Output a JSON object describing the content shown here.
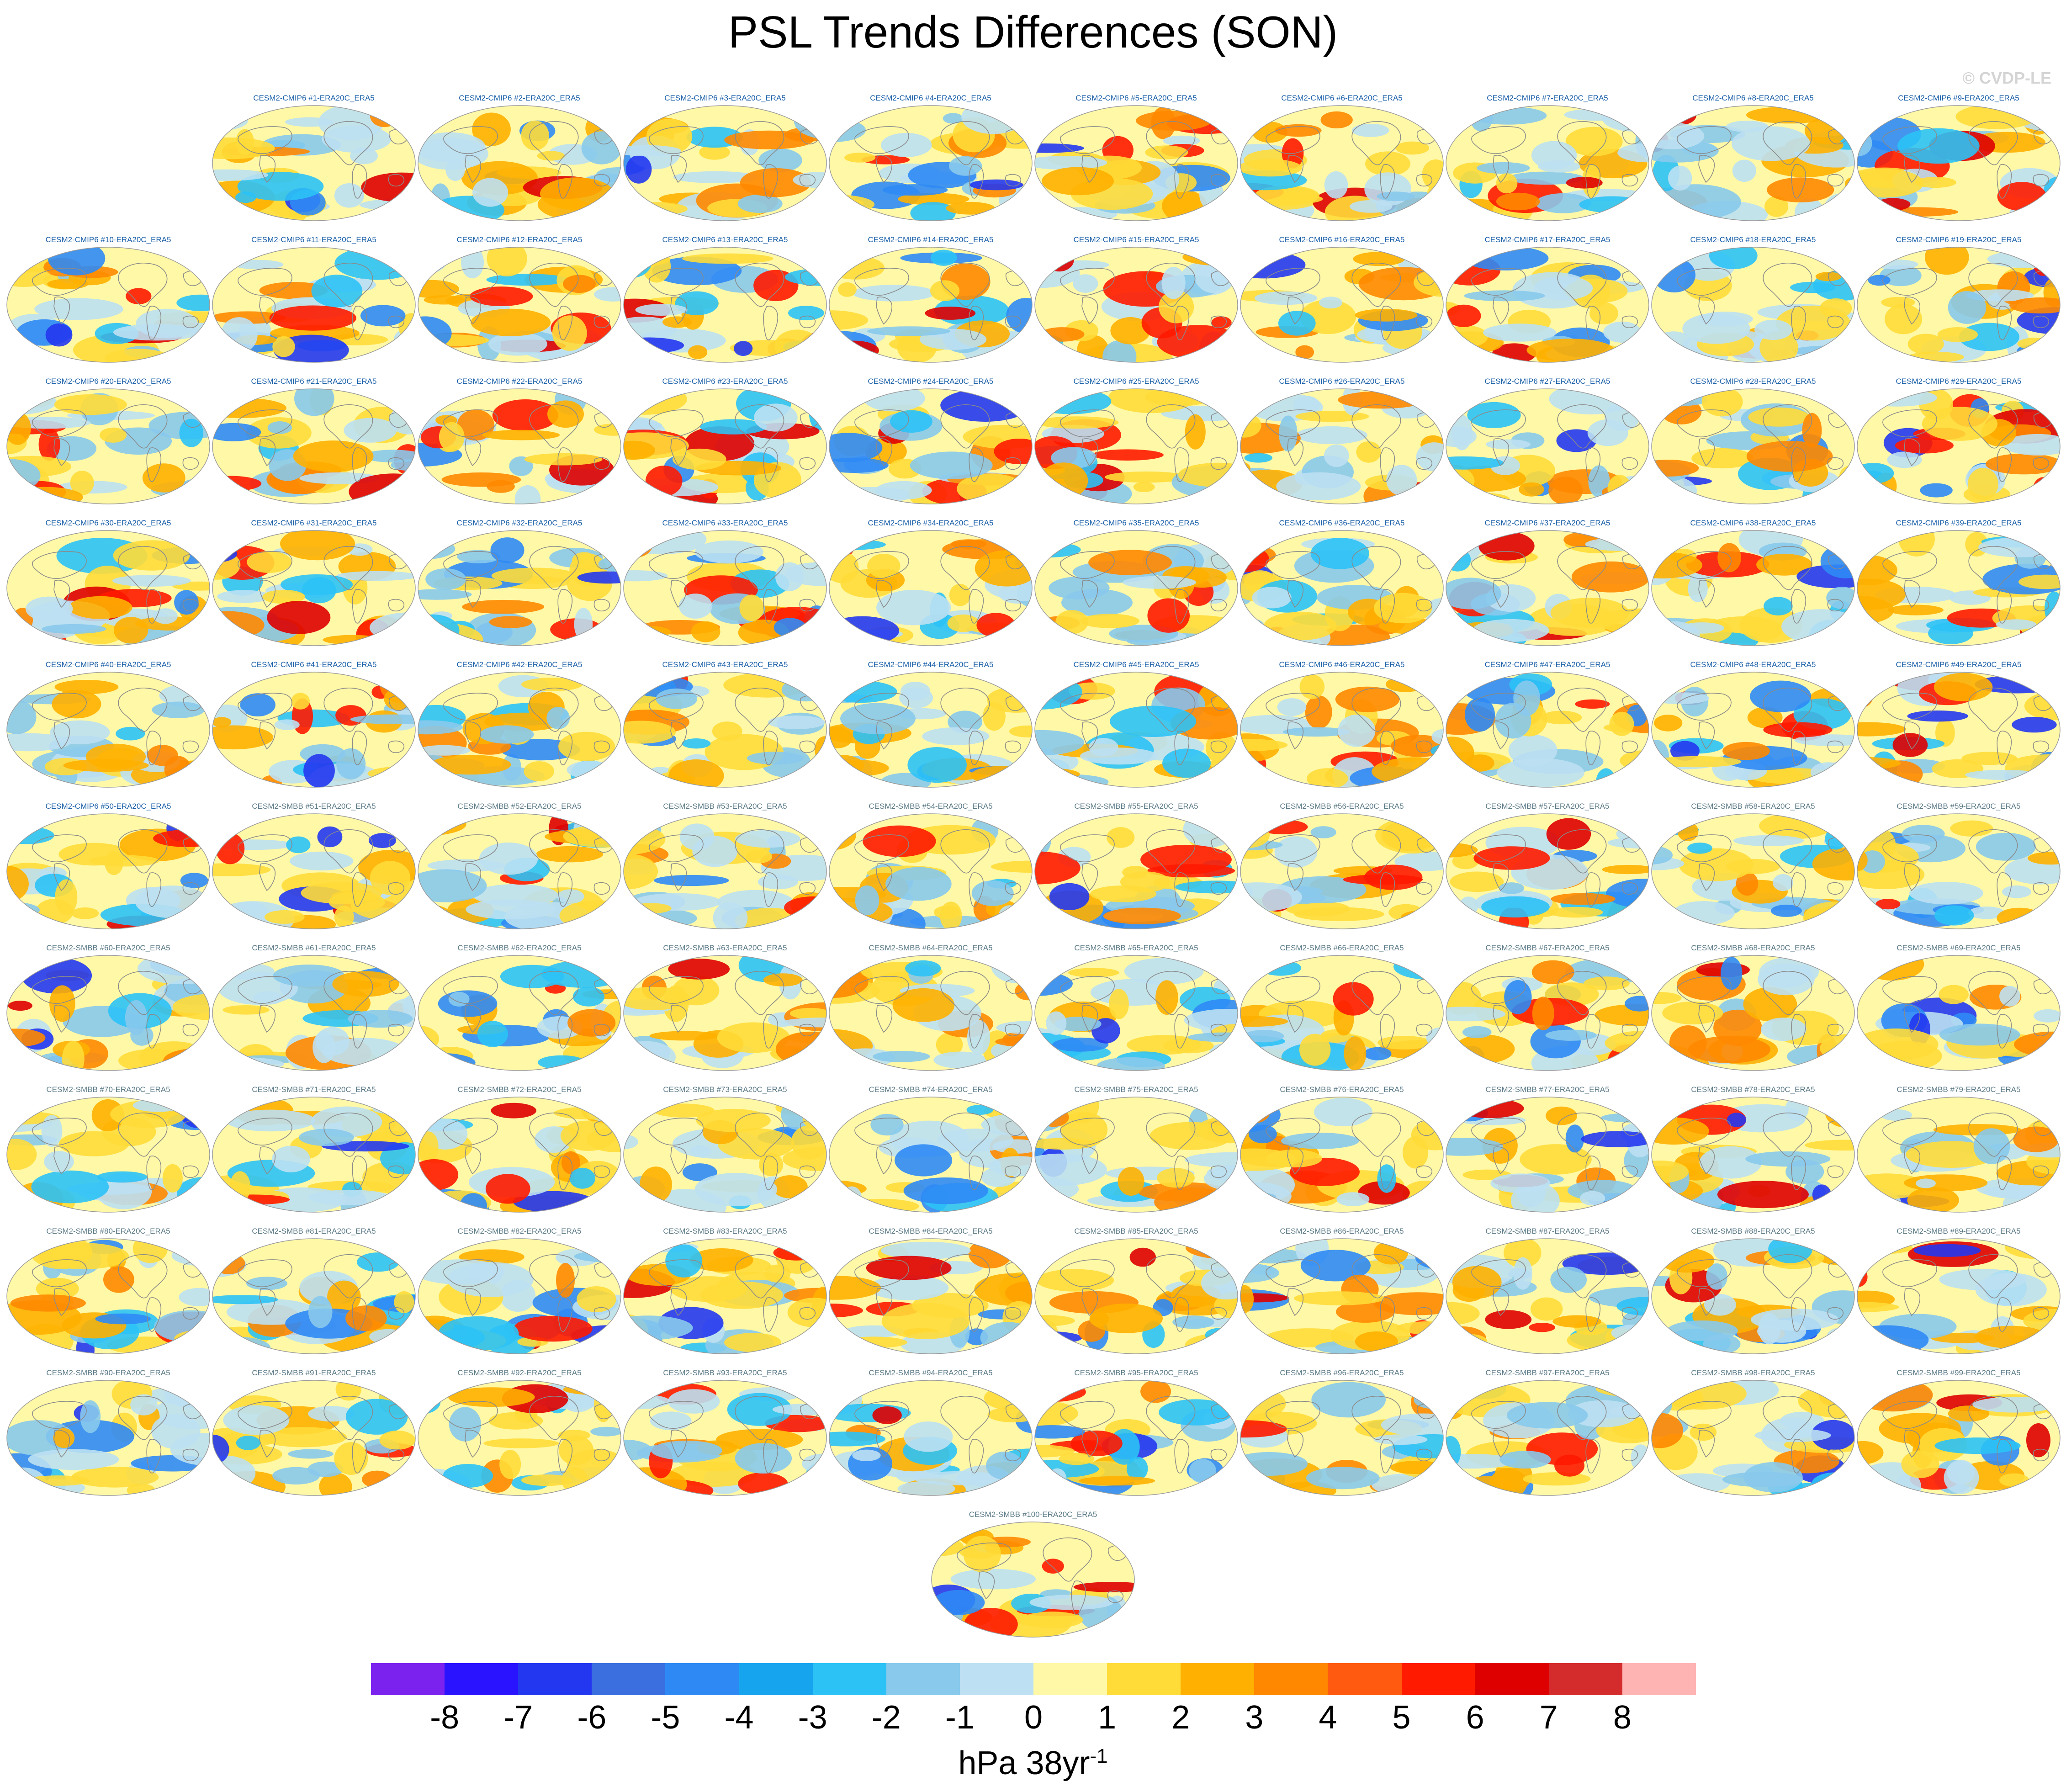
{
  "title": "PSL Trends Differences (SON)",
  "credit": "© CVDP-LE",
  "units": {
    "base": "hPa 38yr",
    "exponent": "-1"
  },
  "colorbar": {
    "labels": [
      "-8",
      "-7",
      "-6",
      "-5",
      "-4",
      "-3",
      "-2",
      "-1",
      "0",
      "1",
      "2",
      "3",
      "4",
      "5",
      "6",
      "7",
      "8"
    ],
    "colors": [
      "#7b22ee",
      "#2a13ff",
      "#2437f0",
      "#3b6fe0",
      "#2f89f5",
      "#17a4ef",
      "#2cc2f6",
      "#88c9ec",
      "#bde0f2",
      "#fff8a6",
      "#ffdc38",
      "#ffb000",
      "#ff8800",
      "#ff5a10",
      "#ff1a00",
      "#de0000",
      "#d42c2c",
      "#ffb4b4"
    ],
    "land_outline": "#8a8a8a"
  },
  "panels": [
    "CESM2-CMIP6 #1-ERA20C_ERA5",
    "CESM2-CMIP6 #2-ERA20C_ERA5",
    "CESM2-CMIP6 #3-ERA20C_ERA5",
    "CESM2-CMIP6 #4-ERA20C_ERA5",
    "CESM2-CMIP6 #5-ERA20C_ERA5",
    "CESM2-CMIP6 #6-ERA20C_ERA5",
    "CESM2-CMIP6 #7-ERA20C_ERA5",
    "CESM2-CMIP6 #8-ERA20C_ERA5",
    "CESM2-CMIP6 #9-ERA20C_ERA5",
    "CESM2-CMIP6 #10-ERA20C_ERA5",
    "CESM2-CMIP6 #11-ERA20C_ERA5",
    "CESM2-CMIP6 #12-ERA20C_ERA5",
    "CESM2-CMIP6 #13-ERA20C_ERA5",
    "CESM2-CMIP6 #14-ERA20C_ERA5",
    "CESM2-CMIP6 #15-ERA20C_ERA5",
    "CESM2-CMIP6 #16-ERA20C_ERA5",
    "CESM2-CMIP6 #17-ERA20C_ERA5",
    "CESM2-CMIP6 #18-ERA20C_ERA5",
    "CESM2-CMIP6 #19-ERA20C_ERA5",
    "CESM2-CMIP6 #20-ERA20C_ERA5",
    "CESM2-CMIP6 #21-ERA20C_ERA5",
    "CESM2-CMIP6 #22-ERA20C_ERA5",
    "CESM2-CMIP6 #23-ERA20C_ERA5",
    "CESM2-CMIP6 #24-ERA20C_ERA5",
    "CESM2-CMIP6 #25-ERA20C_ERA5",
    "CESM2-CMIP6 #26-ERA20C_ERA5",
    "CESM2-CMIP6 #27-ERA20C_ERA5",
    "CESM2-CMIP6 #28-ERA20C_ERA5",
    "CESM2-CMIP6 #29-ERA20C_ERA5",
    "CESM2-CMIP6 #30-ERA20C_ERA5",
    "CESM2-CMIP6 #31-ERA20C_ERA5",
    "CESM2-CMIP6 #32-ERA20C_ERA5",
    "CESM2-CMIP6 #33-ERA20C_ERA5",
    "CESM2-CMIP6 #34-ERA20C_ERA5",
    "CESM2-CMIP6 #35-ERA20C_ERA5",
    "CESM2-CMIP6 #36-ERA20C_ERA5",
    "CESM2-CMIP6 #37-ERA20C_ERA5",
    "CESM2-CMIP6 #38-ERA20C_ERA5",
    "CESM2-CMIP6 #39-ERA20C_ERA5",
    "CESM2-CMIP6 #40-ERA20C_ERA5",
    "CESM2-CMIP6 #41-ERA20C_ERA5",
    "CESM2-CMIP6 #42-ERA20C_ERA5",
    "CESM2-CMIP6 #43-ERA20C_ERA5",
    "CESM2-CMIP6 #44-ERA20C_ERA5",
    "CESM2-CMIP6 #45-ERA20C_ERA5",
    "CESM2-CMIP6 #46-ERA20C_ERA5",
    "CESM2-CMIP6 #47-ERA20C_ERA5",
    "CESM2-CMIP6 #48-ERA20C_ERA5",
    "CESM2-CMIP6 #49-ERA20C_ERA5",
    "CESM2-CMIP6 #50-ERA20C_ERA5",
    "CESM2-SMBB #51-ERA20C_ERA5",
    "CESM2-SMBB #52-ERA20C_ERA5",
    "CESM2-SMBB #53-ERA20C_ERA5",
    "CESM2-SMBB #54-ERA20C_ERA5",
    "CESM2-SMBB #55-ERA20C_ERA5",
    "CESM2-SMBB #56-ERA20C_ERA5",
    "CESM2-SMBB #57-ERA20C_ERA5",
    "CESM2-SMBB #58-ERA20C_ERA5",
    "CESM2-SMBB #59-ERA20C_ERA5",
    "CESM2-SMBB #60-ERA20C_ERA5",
    "CESM2-SMBB #61-ERA20C_ERA5",
    "CESM2-SMBB #62-ERA20C_ERA5",
    "CESM2-SMBB #63-ERA20C_ERA5",
    "CESM2-SMBB #64-ERA20C_ERA5",
    "CESM2-SMBB #65-ERA20C_ERA5",
    "CESM2-SMBB #66-ERA20C_ERA5",
    "CESM2-SMBB #67-ERA20C_ERA5",
    "CESM2-SMBB #68-ERA20C_ERA5",
    "CESM2-SMBB #69-ERA20C_ERA5",
    "CESM2-SMBB #70-ERA20C_ERA5",
    "CESM2-SMBB #71-ERA20C_ERA5",
    "CESM2-SMBB #72-ERA20C_ERA5",
    "CESM2-SMBB #73-ERA20C_ERA5",
    "CESM2-SMBB #74-ERA20C_ERA5",
    "CESM2-SMBB #75-ERA20C_ERA5",
    "CESM2-SMBB #76-ERA20C_ERA5",
    "CESM2-SMBB #77-ERA20C_ERA5",
    "CESM2-SMBB #78-ERA20C_ERA5",
    "CESM2-SMBB #79-ERA20C_ERA5",
    "CESM2-SMBB #80-ERA20C_ERA5",
    "CESM2-SMBB #81-ERA20C_ERA5",
    "CESM2-SMBB #82-ERA20C_ERA5",
    "CESM2-SMBB #83-ERA20C_ERA5",
    "CESM2-SMBB #84-ERA20C_ERA5",
    "CESM2-SMBB #85-ERA20C_ERA5",
    "CESM2-SMBB #86-ERA20C_ERA5",
    "CESM2-SMBB #87-ERA20C_ERA5",
    "CESM2-SMBB #88-ERA20C_ERA5",
    "CESM2-SMBB #89-ERA20C_ERA5",
    "CESM2-SMBB #90-ERA20C_ERA5",
    "CESM2-SMBB #91-ERA20C_ERA5",
    "CESM2-SMBB #92-ERA20C_ERA5",
    "CESM2-SMBB #93-ERA20C_ERA5",
    "CESM2-SMBB #94-ERA20C_ERA5",
    "CESM2-SMBB #95-ERA20C_ERA5",
    "CESM2-SMBB #96-ERA20C_ERA5",
    "CESM2-SMBB #97-ERA20C_ERA5",
    "CESM2-SMBB #98-ERA20C_ERA5",
    "CESM2-SMBB #99-ERA20C_ERA5",
    "CESM2-SMBB #100-ERA20C_ERA5"
  ]
}
